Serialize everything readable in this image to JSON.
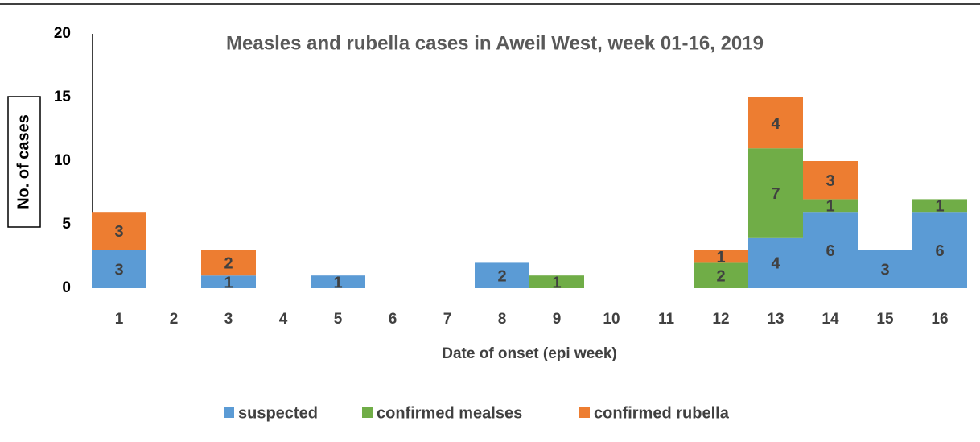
{
  "chart_data": {
    "type": "stacked_bar",
    "title": "Measles and rubella cases in Aweil West, week 01-16, 2019",
    "y_label": "No. of cases",
    "x_label": "Date of onset (epi week)",
    "categories": [
      "1",
      "2",
      "3",
      "4",
      "5",
      "6",
      "7",
      "8",
      "9",
      "10",
      "11",
      "12",
      "13",
      "14",
      "15",
      "16"
    ],
    "series": [
      {
        "name": "suspected",
        "color": "#5b9bd5",
        "values": [
          3,
          0,
          1,
          0,
          1,
          0,
          0,
          2,
          0,
          0,
          0,
          0,
          4,
          6,
          3,
          6
        ]
      },
      {
        "name": "confirmed mealses",
        "color": "#70ad47",
        "values": [
          0,
          0,
          0,
          0,
          0,
          0,
          0,
          0,
          1,
          0,
          0,
          2,
          7,
          1,
          0,
          1
        ]
      },
      {
        "name": "confirmed rubella",
        "color": "#ed7d31",
        "values": [
          3,
          0,
          2,
          0,
          0,
          0,
          0,
          0,
          0,
          0,
          0,
          1,
          4,
          3,
          0,
          0
        ]
      }
    ],
    "ylim": [
      0,
      20
    ],
    "yticks": [
      0,
      5,
      10,
      15,
      20
    ],
    "grid": false,
    "legend": "bottom"
  }
}
